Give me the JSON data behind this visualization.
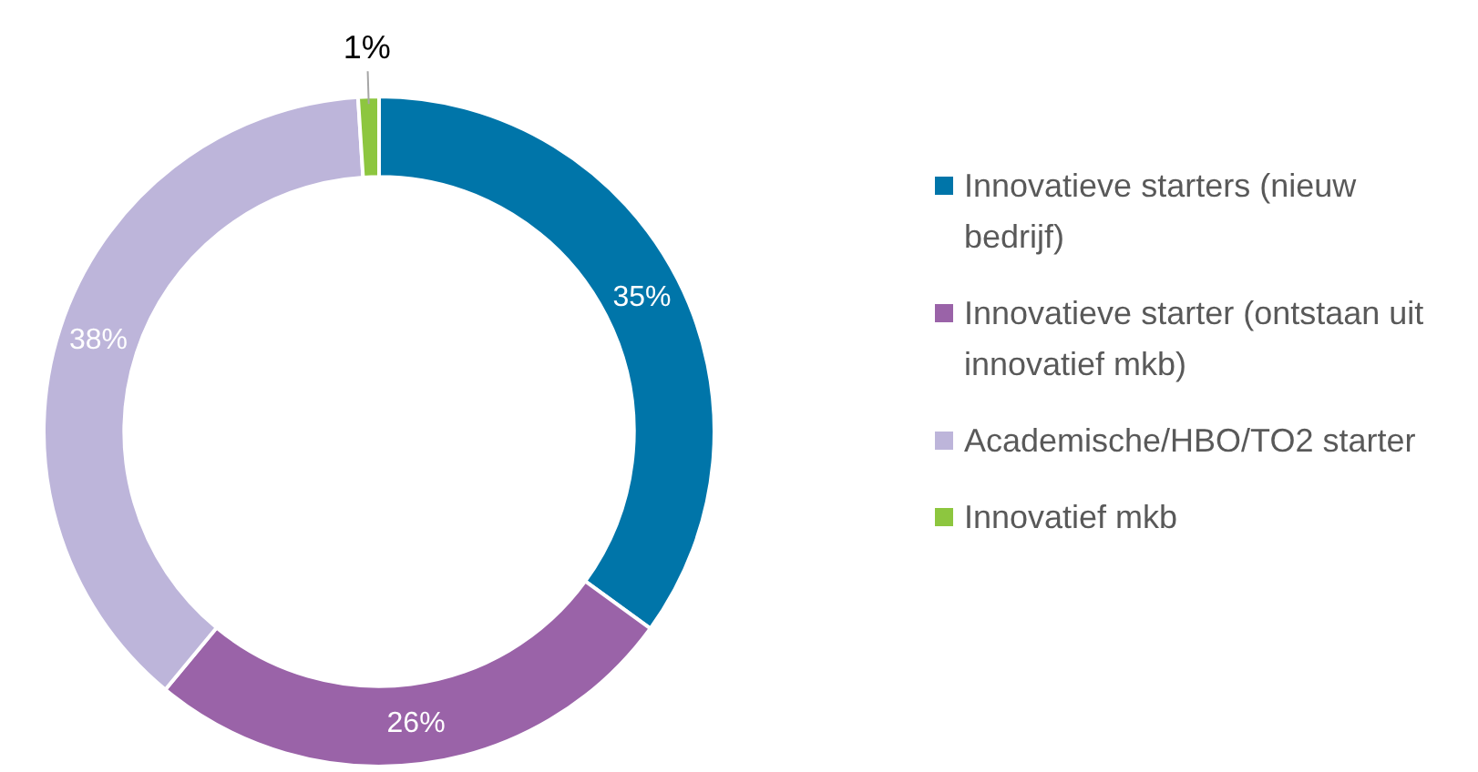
{
  "chart_data": {
    "type": "donut",
    "categories": [
      "Innovatieve starters (nieuw bedrijf)",
      "Innovatieve starter (ontstaan uit innovatief mkb)",
      "Academische/HBO/TO2 starter",
      "Innovatief mkb"
    ],
    "values": [
      35,
      26,
      38,
      1
    ],
    "colors": [
      "#0075a9",
      "#9a63a8",
      "#bdb5da",
      "#8dc63f"
    ],
    "value_labels": [
      "35%",
      "26%",
      "38%",
      "1%"
    ],
    "legend": "right"
  }
}
